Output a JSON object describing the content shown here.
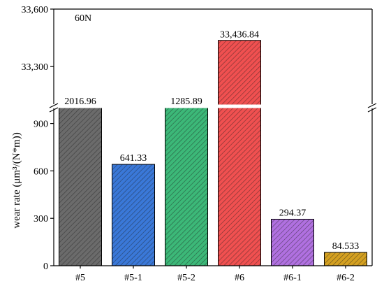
{
  "chart_data": {
    "type": "bar",
    "annotation": "60N",
    "ylabel": "wear rate (μm³/(N*m))",
    "categories": [
      "#5",
      "#5-1",
      "#5-2",
      "#6",
      "#6-1",
      "#6-2"
    ],
    "values": [
      2016.96,
      641.33,
      1285.89,
      33436.84,
      294.37,
      84.533
    ],
    "value_labels": [
      "2016.96",
      "641.33",
      "1285.89",
      "33,436.84",
      "294.37",
      "84.533"
    ],
    "colors": [
      "#6b6b6b",
      "#3a78d8",
      "#3cb878",
      "#f05050",
      "#b070e0",
      "#d4a020"
    ],
    "y_axis": {
      "broken": true,
      "lower_range": [
        0,
        1000
      ],
      "upper_range": [
        33100,
        33600
      ],
      "lower_ticks": [
        0,
        300,
        600,
        900
      ],
      "lower_tick_labels": [
        "0",
        "300",
        "600",
        "900"
      ],
      "upper_ticks": [
        33300,
        33600
      ],
      "upper_tick_labels": [
        "33,300",
        "33,600"
      ]
    },
    "hatch": "diagonal",
    "grid": false
  }
}
